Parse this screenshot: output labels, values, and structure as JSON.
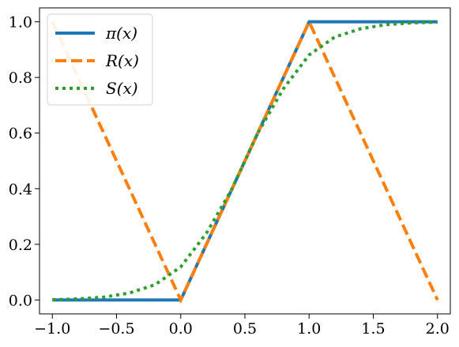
{
  "chart_data": {
    "type": "line",
    "title": "",
    "xlabel": "",
    "ylabel": "",
    "xlim": [
      -1.1,
      2.1
    ],
    "ylim": [
      -0.05,
      1.05
    ],
    "grid": false,
    "legend_placement": "top-left",
    "x_ticks": [
      {
        "value": -1.0,
        "label": "−1.0"
      },
      {
        "value": -0.5,
        "label": "−0.5"
      },
      {
        "value": 0.0,
        "label": "0.0"
      },
      {
        "value": 0.5,
        "label": "0.5"
      },
      {
        "value": 1.0,
        "label": "1.0"
      },
      {
        "value": 1.5,
        "label": "1.5"
      },
      {
        "value": 2.0,
        "label": "2.0"
      }
    ],
    "y_ticks": [
      {
        "value": 0.0,
        "label": "0.0"
      },
      {
        "value": 0.2,
        "label": "0.2"
      },
      {
        "value": 0.4,
        "label": "0.4"
      },
      {
        "value": 0.6,
        "label": "0.6"
      },
      {
        "value": 0.8,
        "label": "0.8"
      },
      {
        "value": 1.0,
        "label": "1.0"
      }
    ],
    "series": [
      {
        "name": "π(x)",
        "color": "#1f77b4",
        "style": "solid",
        "x": [
          -1.0,
          0.0,
          1.0,
          2.0
        ],
        "y": [
          0.0,
          0.0,
          1.0,
          1.0
        ]
      },
      {
        "name": "R(x)",
        "color": "#ff7f0e",
        "style": "dashed",
        "x": [
          -1.0,
          0.0,
          1.0,
          2.0
        ],
        "y": [
          1.0,
          0.0,
          1.0,
          0.0
        ]
      },
      {
        "name": "S(x)",
        "color": "#2ca02c",
        "style": "dotted",
        "x": [
          -1.0,
          -0.8,
          -0.6,
          -0.4,
          -0.2,
          0.0,
          0.2,
          0.4,
          0.5,
          0.6,
          0.8,
          1.0,
          1.2,
          1.4,
          1.6,
          1.8,
          2.0
        ],
        "y": [
          0.001,
          0.004,
          0.01,
          0.025,
          0.055,
          0.119,
          0.24,
          0.4,
          0.5,
          0.6,
          0.76,
          0.881,
          0.945,
          0.975,
          0.99,
          0.996,
          0.999
        ]
      }
    ]
  }
}
